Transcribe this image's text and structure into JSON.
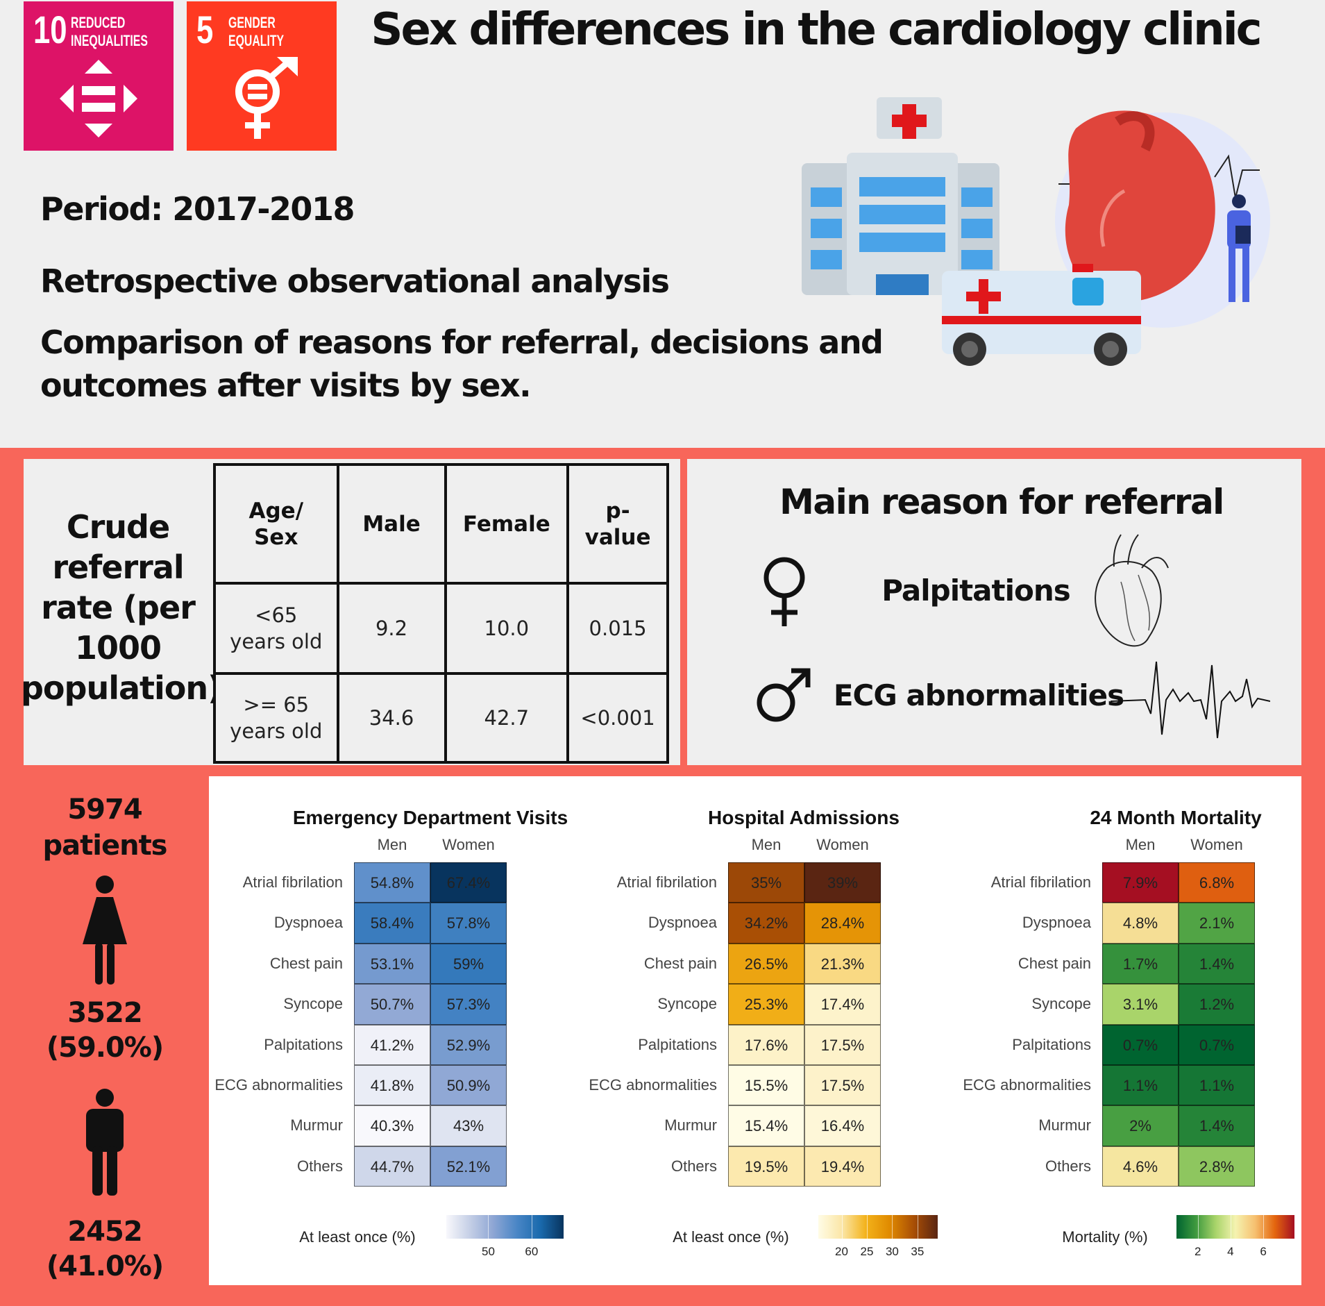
{
  "sdg_badges": [
    {
      "number": "10",
      "label_line1": "REDUCED",
      "label_line2": "INEQUALITIES",
      "color": "#dd1367"
    },
    {
      "number": "5",
      "label_line1": "GENDER",
      "label_line2": "EQUALITY",
      "color": "#ff3a21"
    }
  ],
  "title": "Sex differences in the cardiology clinic",
  "period": "Period: 2017-2018",
  "study_type": "Retrospective observational analysis",
  "aim_line1": "Comparison of reasons for referral, decisions and",
  "aim_line2": "outcomes after visits by sex.",
  "crude_rate": {
    "label_lines": [
      "Crude",
      "referral",
      "rate (per",
      "1000",
      "population)"
    ],
    "headers": [
      "Age/ Sex",
      "Male",
      "Female",
      "p-value"
    ],
    "rows": [
      [
        "<65 years old",
        "9.2",
        "10.0",
        "0.015"
      ],
      [
        ">= 65 years old",
        "34.6",
        "42.7",
        "<0.001"
      ]
    ]
  },
  "main_reason": {
    "title": "Main reason for referral",
    "female": "Palpitations",
    "male": "ECG abnormalities"
  },
  "patients": {
    "total_line1": "5974",
    "total_line2": "patients",
    "women_count": "3522",
    "women_pct": "(59.0%)",
    "men_count": "2452",
    "men_pct": "(41.0%)"
  },
  "colors": {
    "accent_red": "#f8665a",
    "panel_gray": "#efefef"
  },
  "chart_data": [
    {
      "type": "heatmap",
      "title": "Emergency Department Visits",
      "columns": [
        "Men",
        "Women"
      ],
      "rows": [
        "Atrial fibrilation",
        "Dyspnoea",
        "Chest pain",
        "Syncope",
        "Palpitations",
        "ECG abnormalities",
        "Murmur",
        "Others"
      ],
      "values": [
        [
          54.8,
          67.4
        ],
        [
          58.4,
          57.8
        ],
        [
          53.1,
          59
        ],
        [
          50.7,
          57.3
        ],
        [
          41.2,
          52.9
        ],
        [
          41.8,
          50.9
        ],
        [
          40.3,
          43
        ],
        [
          44.7,
          52.1
        ]
      ],
      "labels": [
        [
          "54.8%",
          "67.4%"
        ],
        [
          "58.4%",
          "57.8%"
        ],
        [
          "53.1%",
          "59%"
        ],
        [
          "50.7%",
          "57.3%"
        ],
        [
          "41.2%",
          "52.9%"
        ],
        [
          "41.8%",
          "50.9%"
        ],
        [
          "40.3%",
          "43%"
        ],
        [
          "44.7%",
          "52.1%"
        ]
      ],
      "legend_title": "At least once (%)",
      "legend_ticks": [
        "50",
        "60"
      ],
      "legend_tick_values": [
        50,
        60
      ],
      "range": [
        40.3,
        67.4
      ],
      "palette": [
        "#f8f8fc",
        "#c5cfe6",
        "#8ea6d4",
        "#4a86c6",
        "#1a6aad",
        "#08345e"
      ]
    },
    {
      "type": "heatmap",
      "title": "Hospital Admissions",
      "columns": [
        "Men",
        "Women"
      ],
      "rows": [
        "Atrial fibrilation",
        "Dyspnoea",
        "Chest pain",
        "Syncope",
        "Palpitations",
        "ECG abnormalities",
        "Murmur",
        "Others"
      ],
      "values": [
        [
          35,
          39
        ],
        [
          34.2,
          28.4
        ],
        [
          26.5,
          21.3
        ],
        [
          25.3,
          17.4
        ],
        [
          17.6,
          17.5
        ],
        [
          15.5,
          17.5
        ],
        [
          15.4,
          16.4
        ],
        [
          19.5,
          19.4
        ]
      ],
      "labels": [
        [
          "35%",
          "39%"
        ],
        [
          "34.2%",
          "28.4%"
        ],
        [
          "26.5%",
          "21.3%"
        ],
        [
          "25.3%",
          "17.4%"
        ],
        [
          "17.6%",
          "17.5%"
        ],
        [
          "15.5%",
          "17.5%"
        ],
        [
          "15.4%",
          "16.4%"
        ],
        [
          "19.5%",
          "19.4%"
        ]
      ],
      "legend_title": "At least once (%)",
      "legend_ticks": [
        "20",
        "25",
        "30",
        "35"
      ],
      "legend_tick_values": [
        20,
        25,
        30,
        35
      ],
      "range": [
        15.4,
        39
      ],
      "palette": [
        "#fffce6",
        "#fbe6a6",
        "#f3b21a",
        "#e08a00",
        "#a84e05",
        "#5a2512"
      ]
    },
    {
      "type": "heatmap",
      "title": "24 Month Mortality",
      "columns": [
        "Men",
        "Women"
      ],
      "rows": [
        "Atrial fibrilation",
        "Dyspnoea",
        "Chest pain",
        "Syncope",
        "Palpitations",
        "ECG abnormalities",
        "Murmur",
        "Others"
      ],
      "values": [
        [
          7.9,
          6.8
        ],
        [
          4.8,
          2.1
        ],
        [
          1.7,
          1.4
        ],
        [
          3.1,
          1.2
        ],
        [
          0.7,
          0.7
        ],
        [
          1.1,
          1.1
        ],
        [
          2,
          1.4
        ],
        [
          4.6,
          2.8
        ]
      ],
      "labels": [
        [
          "7.9%",
          "6.8%"
        ],
        [
          "4.8%",
          "2.1%"
        ],
        [
          "1.7%",
          "1.4%"
        ],
        [
          "3.1%",
          "1.2%"
        ],
        [
          "0.7%",
          "0.7%"
        ],
        [
          "1.1%",
          "1.1%"
        ],
        [
          "2%",
          "1.4%"
        ],
        [
          "4.6%",
          "2.8%"
        ]
      ],
      "legend_title": "Mortality (%)",
      "legend_ticks": [
        "2",
        "4",
        "6"
      ],
      "legend_tick_values": [
        2,
        4,
        6
      ],
      "range": [
        0.7,
        7.9
      ],
      "palette": [
        "#006430",
        "#3f9a3e",
        "#a9d46a",
        "#f5f3b0",
        "#f6c070",
        "#e4660e",
        "#a50f22"
      ]
    }
  ]
}
